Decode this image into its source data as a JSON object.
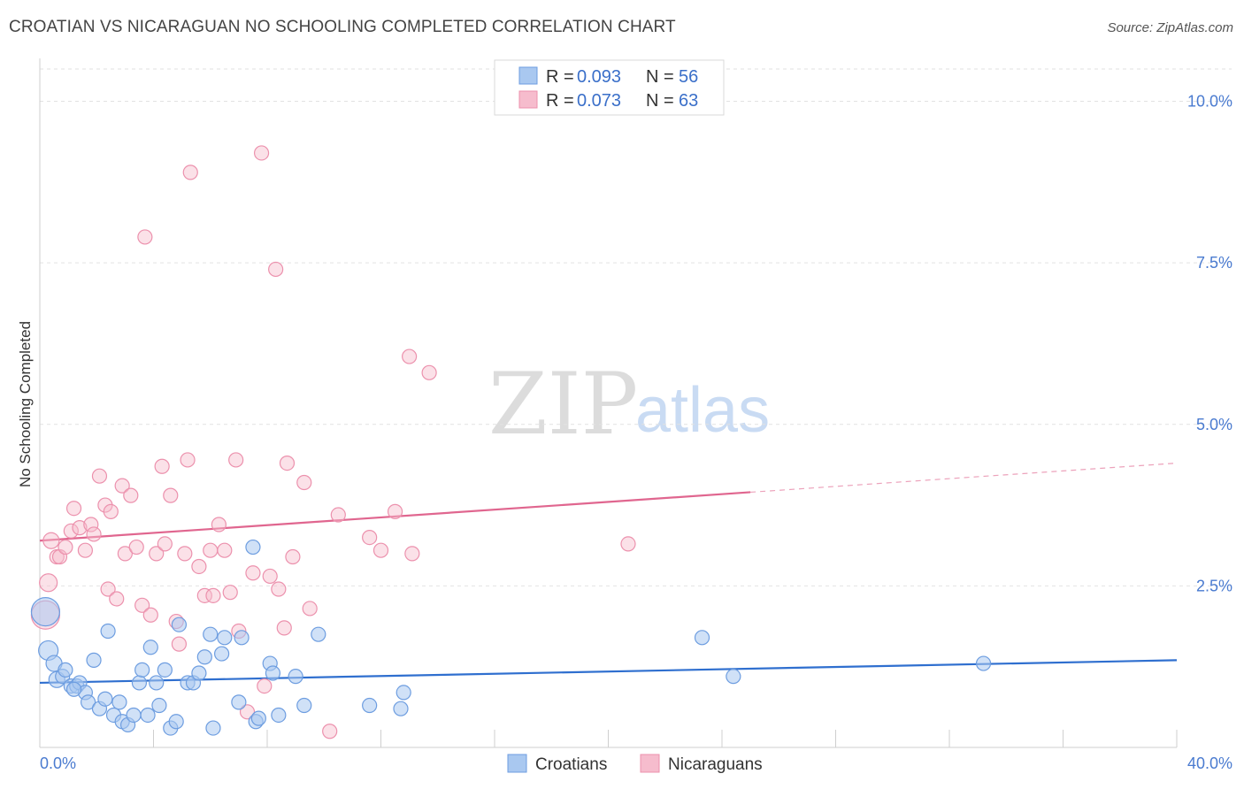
{
  "header": {
    "title": "CROATIAN VS NICARAGUAN NO SCHOOLING COMPLETED CORRELATION CHART",
    "source": "Source: ZipAtlas.com"
  },
  "watermark": {
    "zip": "ZIP",
    "atlas": "atlas"
  },
  "colors": {
    "blue_fill": "#a9c8f0",
    "blue_stroke": "#6d9de0",
    "blue_line": "#2f6fcf",
    "pink_fill": "#f6bccd",
    "pink_stroke": "#ec91ad",
    "pink_line": "#e0668f"
  },
  "legend": {
    "r_label": "R =",
    "n_label": "N =",
    "items": [
      {
        "r": "0.093",
        "n": "56"
      },
      {
        "r": "0.073",
        "n": "63"
      }
    ]
  },
  "chart_data": {
    "type": "scatter",
    "title": "CROATIAN VS NICARAGUAN NO SCHOOLING COMPLETED CORRELATION CHART",
    "xlabel": "",
    "ylabel": "No Schooling Completed",
    "xlim": [
      0,
      40
    ],
    "ylim": [
      0,
      10.5
    ],
    "x_tick_labels": [
      "0.0%",
      "40.0%"
    ],
    "y_ticks": [
      2.5,
      5.0,
      7.5,
      10.0
    ],
    "y_tick_labels": [
      "2.5%",
      "5.0%",
      "7.5%",
      "10.0%"
    ],
    "grid": true,
    "legend_position": "top-center",
    "series": [
      {
        "name": "Croatians",
        "color": "#a9c8f0",
        "trend": {
          "x": [
            0,
            40
          ],
          "y": [
            1.0,
            1.35
          ],
          "dashed_from": null
        },
        "points": [
          [
            0.2,
            2.1,
            16
          ],
          [
            0.3,
            1.5,
            11
          ],
          [
            0.5,
            1.3,
            9
          ],
          [
            0.6,
            1.05,
            9
          ],
          [
            0.8,
            1.1,
            8
          ],
          [
            0.9,
            1.2,
            8
          ],
          [
            1.1,
            0.95,
            8
          ],
          [
            1.3,
            0.95,
            8
          ],
          [
            1.4,
            1.0,
            8
          ],
          [
            1.6,
            0.85,
            8
          ],
          [
            1.7,
            0.7,
            8
          ],
          [
            1.9,
            1.35,
            8
          ],
          [
            2.1,
            0.6,
            8
          ],
          [
            2.3,
            0.75,
            8
          ],
          [
            2.4,
            1.8,
            8
          ],
          [
            2.6,
            0.5,
            8
          ],
          [
            2.8,
            0.7,
            8
          ],
          [
            2.9,
            0.4,
            8
          ],
          [
            3.1,
            0.35,
            8
          ],
          [
            3.3,
            0.5,
            8
          ],
          [
            3.5,
            1.0,
            8
          ],
          [
            3.6,
            1.2,
            8
          ],
          [
            3.8,
            0.5,
            8
          ],
          [
            3.9,
            1.55,
            8
          ],
          [
            4.1,
            1.0,
            8
          ],
          [
            4.2,
            0.65,
            8
          ],
          [
            4.4,
            1.2,
            8
          ],
          [
            4.6,
            0.3,
            8
          ],
          [
            4.8,
            0.4,
            8
          ],
          [
            4.9,
            1.9,
            8
          ],
          [
            5.2,
            1.0,
            8
          ],
          [
            5.4,
            1.0,
            8
          ],
          [
            5.6,
            1.15,
            8
          ],
          [
            5.8,
            1.4,
            8
          ],
          [
            6.0,
            1.75,
            8
          ],
          [
            6.1,
            0.3,
            8
          ],
          [
            6.4,
            1.45,
            8
          ],
          [
            6.5,
            1.7,
            8
          ],
          [
            7.0,
            0.7,
            8
          ],
          [
            7.1,
            1.7,
            8
          ],
          [
            7.5,
            3.1,
            8
          ],
          [
            7.6,
            0.4,
            8
          ],
          [
            7.7,
            0.45,
            8
          ],
          [
            8.1,
            1.3,
            8
          ],
          [
            8.2,
            1.15,
            8
          ],
          [
            8.4,
            0.5,
            8
          ],
          [
            9.0,
            1.1,
            8
          ],
          [
            9.3,
            0.65,
            8
          ],
          [
            9.8,
            1.75,
            8
          ],
          [
            11.6,
            0.65,
            8
          ],
          [
            12.7,
            0.6,
            8
          ],
          [
            12.8,
            0.85,
            8
          ],
          [
            23.3,
            1.7,
            8
          ],
          [
            24.4,
            1.1,
            8
          ],
          [
            33.2,
            1.3,
            8
          ],
          [
            1.2,
            0.9,
            8
          ]
        ]
      },
      {
        "name": "Nicaraguans",
        "color": "#f6bccd",
        "trend": {
          "x": [
            0,
            40
          ],
          "y": [
            3.2,
            4.4
          ],
          "dashed_from": 25
        },
        "points": [
          [
            0.2,
            2.05,
            16
          ],
          [
            0.3,
            2.55,
            10
          ],
          [
            0.4,
            3.2,
            9
          ],
          [
            0.6,
            2.95,
            8
          ],
          [
            0.7,
            2.95,
            8
          ],
          [
            0.9,
            3.1,
            8
          ],
          [
            1.1,
            3.35,
            8
          ],
          [
            1.2,
            3.7,
            8
          ],
          [
            1.4,
            3.4,
            8
          ],
          [
            1.6,
            3.05,
            8
          ],
          [
            1.8,
            3.45,
            8
          ],
          [
            1.9,
            3.3,
            8
          ],
          [
            2.1,
            4.2,
            8
          ],
          [
            2.3,
            3.75,
            8
          ],
          [
            2.4,
            2.45,
            8
          ],
          [
            2.5,
            3.65,
            8
          ],
          [
            2.7,
            2.3,
            8
          ],
          [
            2.9,
            4.05,
            8
          ],
          [
            3.0,
            3.0,
            8
          ],
          [
            3.2,
            3.9,
            8
          ],
          [
            3.4,
            3.1,
            8
          ],
          [
            3.6,
            2.2,
            8
          ],
          [
            3.7,
            7.9,
            8
          ],
          [
            3.9,
            2.05,
            8
          ],
          [
            4.1,
            3.0,
            8
          ],
          [
            4.3,
            4.35,
            8
          ],
          [
            4.4,
            3.15,
            8
          ],
          [
            4.6,
            3.9,
            8
          ],
          [
            4.8,
            1.95,
            8
          ],
          [
            4.9,
            1.6,
            8
          ],
          [
            5.1,
            3.0,
            8
          ],
          [
            5.2,
            4.45,
            8
          ],
          [
            5.3,
            8.9,
            8
          ],
          [
            5.6,
            2.8,
            8
          ],
          [
            5.8,
            2.35,
            8
          ],
          [
            6.0,
            3.05,
            8
          ],
          [
            6.1,
            2.35,
            8
          ],
          [
            6.3,
            3.45,
            8
          ],
          [
            6.5,
            3.05,
            8
          ],
          [
            6.7,
            2.4,
            8
          ],
          [
            6.9,
            4.45,
            8
          ],
          [
            7.0,
            1.8,
            8
          ],
          [
            7.3,
            0.55,
            8
          ],
          [
            7.5,
            2.7,
            8
          ],
          [
            7.8,
            9.2,
            8
          ],
          [
            7.9,
            0.95,
            8
          ],
          [
            8.1,
            2.65,
            8
          ],
          [
            8.3,
            7.4,
            8
          ],
          [
            8.4,
            2.45,
            8
          ],
          [
            8.6,
            1.85,
            8
          ],
          [
            8.7,
            4.4,
            8
          ],
          [
            8.9,
            2.95,
            8
          ],
          [
            9.3,
            4.1,
            8
          ],
          [
            9.5,
            2.15,
            8
          ],
          [
            10.2,
            0.25,
            8
          ],
          [
            10.5,
            3.6,
            8
          ],
          [
            11.6,
            3.25,
            8
          ],
          [
            12.0,
            3.05,
            8
          ],
          [
            12.5,
            3.65,
            8
          ],
          [
            13.0,
            6.05,
            8
          ],
          [
            13.1,
            3.0,
            8
          ],
          [
            13.7,
            5.8,
            8
          ],
          [
            20.7,
            3.15,
            8
          ]
        ]
      }
    ]
  }
}
